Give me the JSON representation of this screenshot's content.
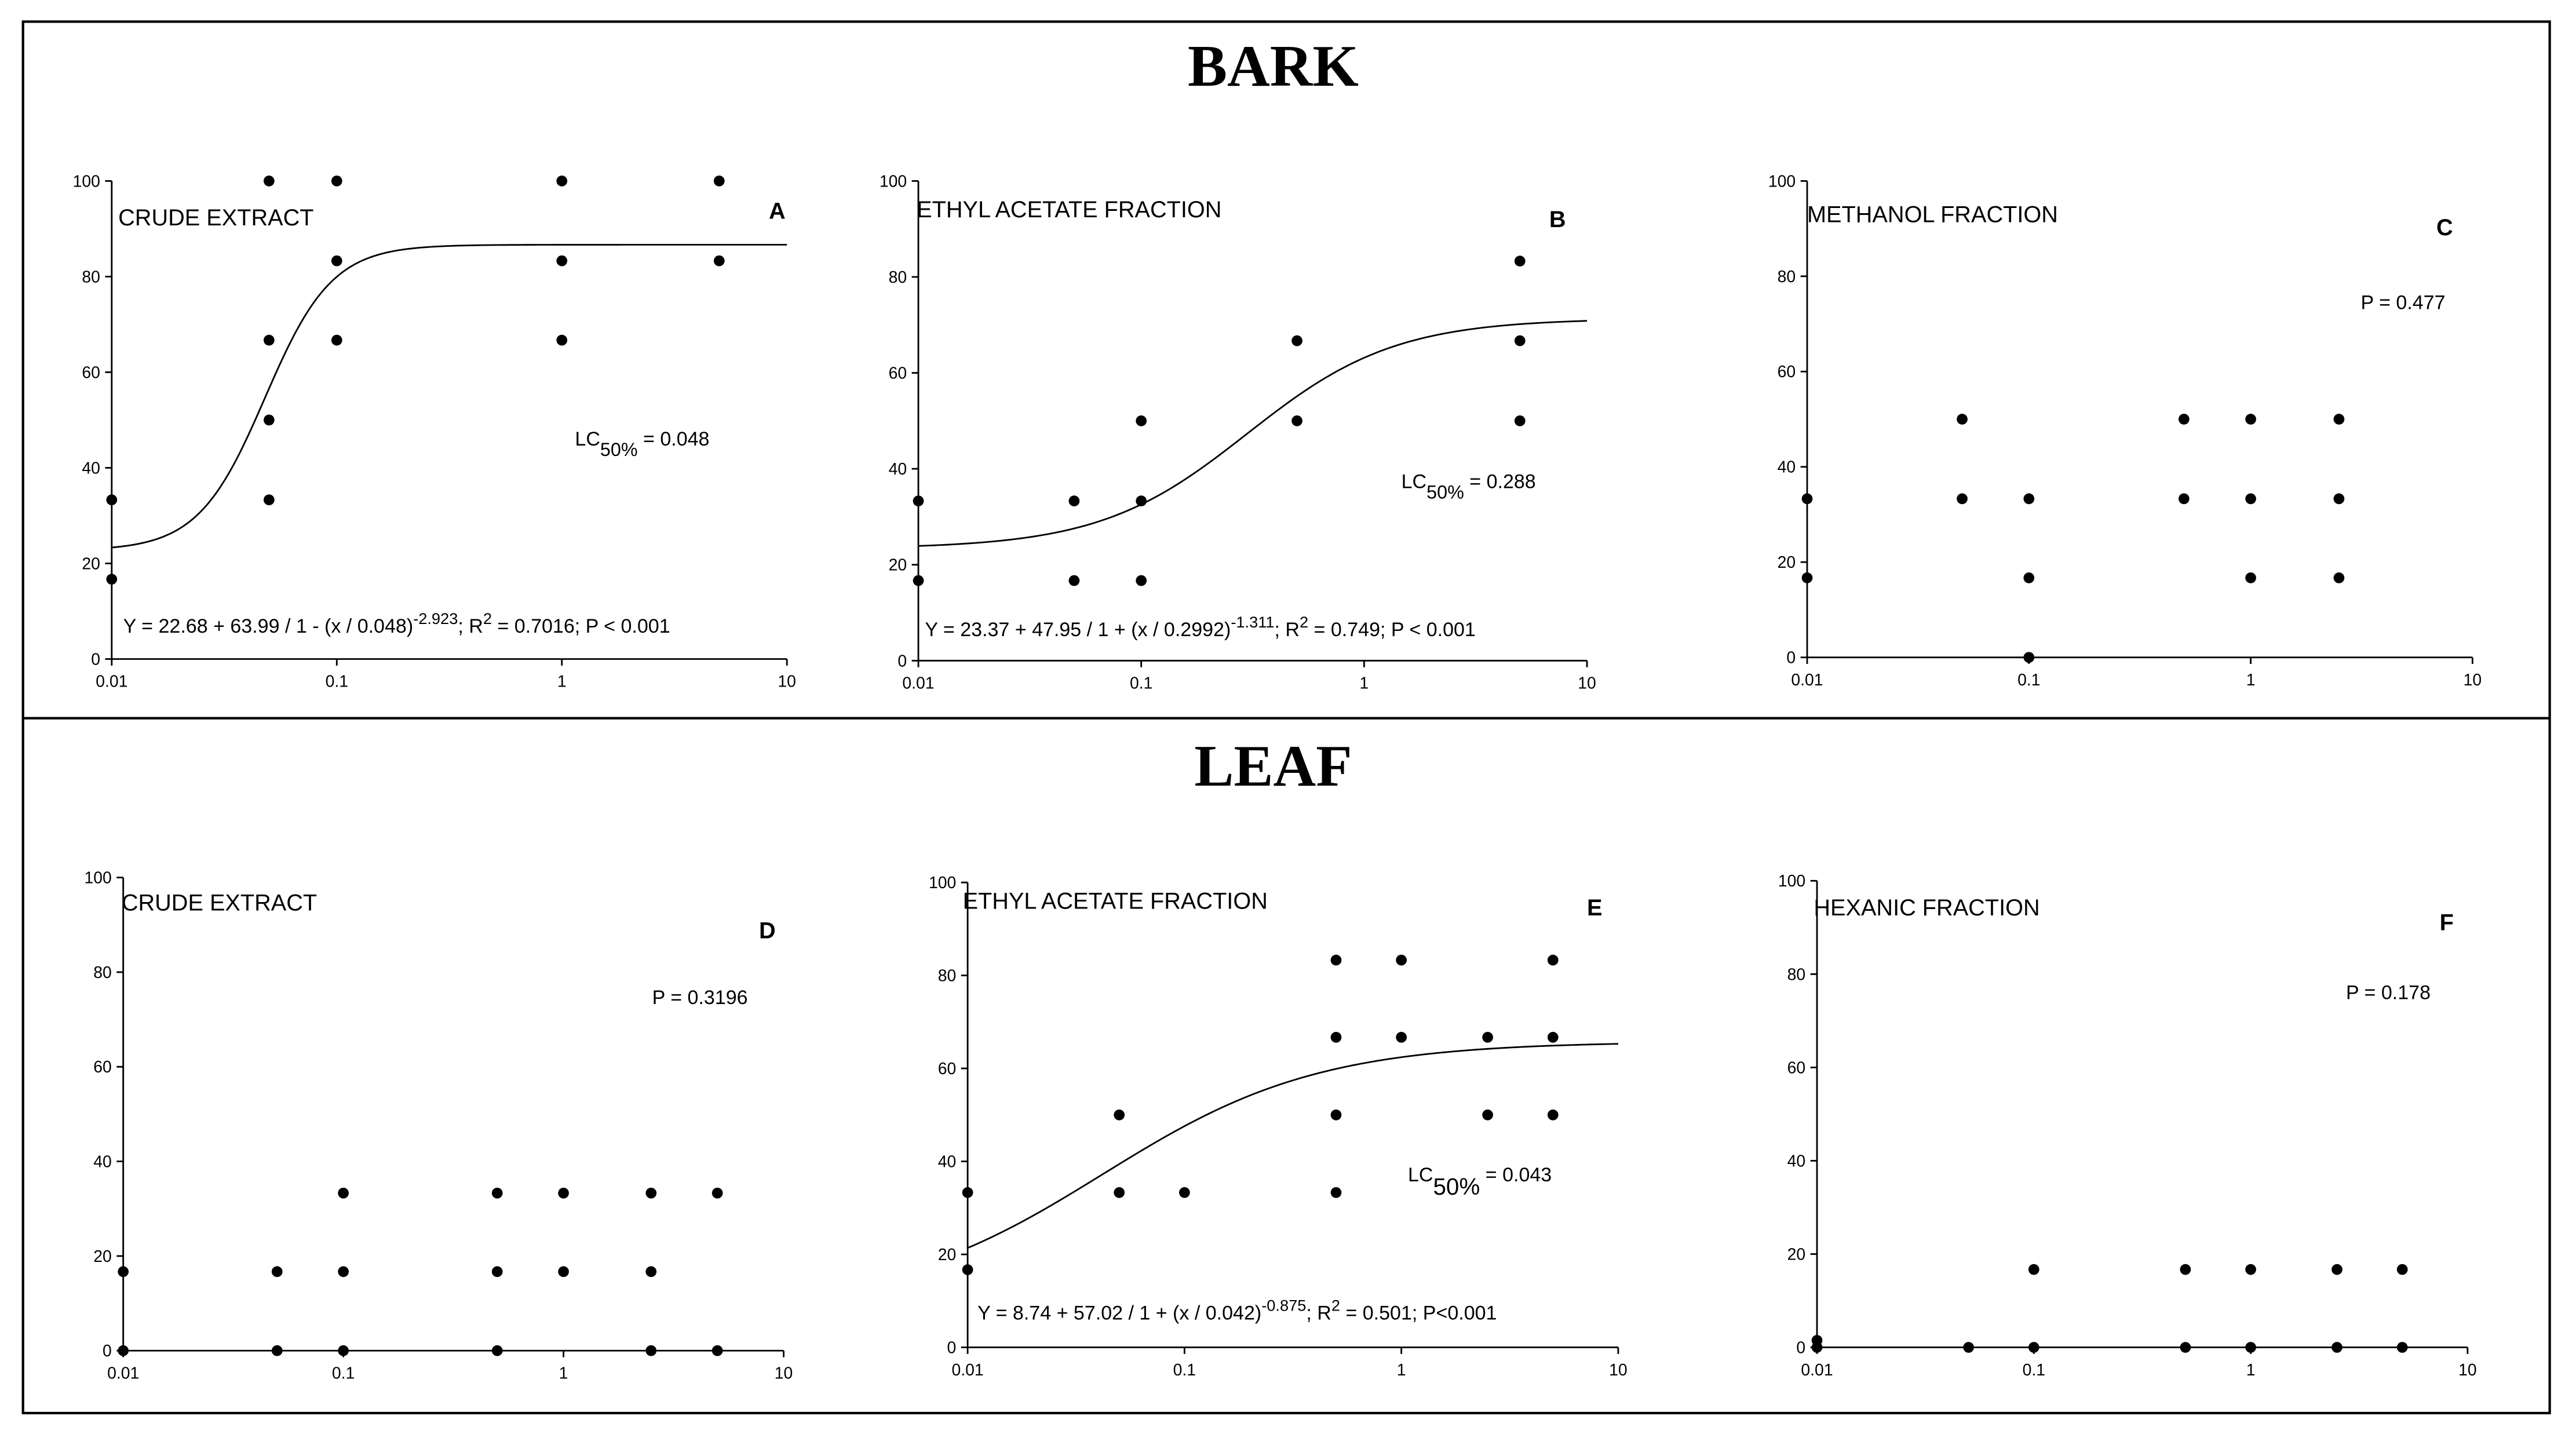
{
  "sections": [
    {
      "title": "BARK"
    },
    {
      "title": "LEAF"
    }
  ],
  "chart_data": [
    {
      "type": "scatter",
      "title": "CRUDE EXTRACT",
      "panel_label": "A",
      "xscale": "log",
      "color": "#000000",
      "xlim": [
        0.01,
        10
      ],
      "xticks": [
        0.01,
        0.1,
        1,
        10
      ],
      "ylim": [
        0,
        100
      ],
      "yticks": [
        0,
        20,
        40,
        60,
        80,
        100
      ],
      "x": [
        0.01,
        0.01,
        0.05,
        0.05,
        0.05,
        0.05,
        0.1,
        0.1,
        0.1,
        1,
        1,
        1,
        5,
        5
      ],
      "values": [
        33.3,
        16.7,
        100,
        66.7,
        50,
        33.3,
        100,
        83.3,
        66.7,
        100,
        83.3,
        66.7,
        100,
        83.3
      ],
      "fit": {
        "y0": 22.68,
        "a": 63.99,
        "x0": 0.048,
        "b": -2.923
      },
      "annotations": [
        {
          "segments": [
            {
              "text": "LC"
            },
            {
              "text": "50%",
              "script": "sub"
            },
            {
              "text": " = 0.048"
            }
          ]
        },
        {
          "segments": [
            {
              "text": "Y = 22.68 + 63.99 / 1 - (x / 0.048)"
            },
            {
              "text": "-2.923",
              "script": "super"
            },
            {
              "text": "; R"
            },
            {
              "text": "2",
              "script": "super"
            },
            {
              "text": " = 0.7016; P < 0.001"
            }
          ]
        }
      ]
    },
    {
      "type": "scatter",
      "title": "ETHYL ACETATE FRACTION",
      "panel_label": "B",
      "xscale": "log",
      "color": "#000000",
      "xlim": [
        0.01,
        10
      ],
      "xticks": [
        0.01,
        0.1,
        1,
        10
      ],
      "ylim": [
        0,
        100
      ],
      "yticks": [
        0,
        20,
        40,
        60,
        80,
        100
      ],
      "x": [
        0.01,
        0.01,
        0.05,
        0.05,
        0.1,
        0.1,
        0.1,
        0.5,
        0.5,
        5,
        5,
        5
      ],
      "values": [
        33.3,
        16.7,
        33.3,
        16.7,
        50,
        33.3,
        16.7,
        66.7,
        50,
        83.3,
        66.7,
        50
      ],
      "fit": {
        "y0": 23.37,
        "a": 47.95,
        "x0": 0.2992,
        "b": -1.311
      },
      "annotations": [
        {
          "segments": [
            {
              "text": "LC"
            },
            {
              "text": "50%",
              "script": "sub"
            },
            {
              "text": " = 0.288"
            }
          ]
        },
        {
          "segments": [
            {
              "text": "Y = 23.37 + 47.95 / 1 + (x / 0.2992)"
            },
            {
              "text": "-1.311",
              "script": "super"
            },
            {
              "text": "; R"
            },
            {
              "text": "2",
              "script": "super"
            },
            {
              "text": " = 0.749; P < 0.001"
            }
          ]
        }
      ]
    },
    {
      "type": "scatter",
      "title": "METHANOL FRACTION",
      "panel_label": "C",
      "xscale": "log",
      "color": "#000000",
      "xlim": [
        0.01,
        10
      ],
      "xticks": [
        0.01,
        0.1,
        1,
        10
      ],
      "ylim": [
        0,
        100
      ],
      "yticks": [
        0,
        20,
        40,
        60,
        80,
        100
      ],
      "x": [
        0.01,
        0.01,
        0.05,
        0.05,
        0.1,
        0.1,
        0.1,
        0.5,
        0.5,
        1,
        1,
        1,
        2.5,
        2.5,
        2.5
      ],
      "values": [
        33.3,
        16.7,
        50,
        33.3,
        33.3,
        16.7,
        0,
        50,
        33.3,
        50,
        33.3,
        16.7,
        50,
        33.3,
        16.7
      ],
      "annotations": [
        {
          "segments": [
            {
              "text": "P = 0.477"
            }
          ]
        }
      ]
    },
    {
      "type": "scatter",
      "title": "CRUDE EXTRACT",
      "panel_label": "D",
      "xscale": "log",
      "color": "#000000",
      "xlim": [
        0.01,
        10
      ],
      "xticks": [
        0.01,
        0.1,
        1,
        10
      ],
      "ylim": [
        0,
        100
      ],
      "yticks": [
        0,
        20,
        40,
        60,
        80,
        100
      ],
      "x": [
        0.01,
        0.01,
        0.05,
        0.05,
        0.1,
        0.1,
        0.1,
        0.5,
        0.5,
        0.5,
        1,
        1,
        2.5,
        2.5,
        2.5,
        5,
        5
      ],
      "values": [
        16.7,
        0,
        16.7,
        0,
        33.3,
        16.7,
        0,
        33.3,
        16.7,
        0,
        33.3,
        16.7,
        33.3,
        16.7,
        0,
        33.3,
        0
      ],
      "annotations": [
        {
          "segments": [
            {
              "text": "P = 0.3196"
            }
          ]
        }
      ]
    },
    {
      "type": "scatter",
      "title": "ETHYL ACETATE FRACTION",
      "panel_label": "E",
      "xscale": "log",
      "color": "#000000",
      "xlim": [
        0.01,
        10
      ],
      "xticks": [
        0.01,
        0.1,
        1,
        10
      ],
      "ylim": [
        0,
        100
      ],
      "yticks": [
        0,
        20,
        40,
        60,
        80,
        100
      ],
      "x": [
        0.01,
        0.01,
        0.05,
        0.05,
        0.1,
        0.5,
        0.5,
        0.5,
        0.5,
        1,
        1,
        2.5,
        2.5,
        5,
        5,
        5
      ],
      "values": [
        33.3,
        16.7,
        50,
        33.3,
        33.3,
        83.3,
        66.7,
        50,
        33.3,
        83.3,
        66.7,
        66.7,
        50,
        83.3,
        66.7,
        50
      ],
      "fit": {
        "y0": 8.74,
        "a": 57.02,
        "x0": 0.042,
        "b": -0.875
      },
      "annotations": [
        {
          "segments": [
            {
              "text": "LC"
            },
            {
              "text": "50%",
              "script": "sub"
            },
            {
              "text": " = 0.043"
            }
          ]
        },
        {
          "segments": [
            {
              "text": "Y = 8.74 + 57.02 / 1 + (x / 0.042)"
            },
            {
              "text": "-0.875",
              "script": "super"
            },
            {
              "text": "; R"
            },
            {
              "text": "2",
              "script": "super"
            },
            {
              "text": " = 0.501; P<0.001"
            }
          ]
        }
      ]
    },
    {
      "type": "scatter",
      "title": "HEXANIC FRACTION",
      "panel_label": "F",
      "xscale": "log",
      "color": "#000000",
      "xlim": [
        0.01,
        10
      ],
      "xticks": [
        0.01,
        0.1,
        1,
        10
      ],
      "ylim": [
        0,
        100
      ],
      "yticks": [
        0,
        20,
        40,
        60,
        80,
        100
      ],
      "x": [
        0.01,
        0.01,
        0.05,
        0.1,
        0.1,
        0.5,
        0.5,
        1,
        1,
        2.5,
        2.5,
        5,
        5
      ],
      "values": [
        1.5,
        0,
        0,
        16.7,
        0,
        16.7,
        0,
        16.7,
        0,
        16.7,
        0,
        16.7,
        0
      ],
      "annotations": [
        {
          "segments": [
            {
              "text": "P = 0.178"
            }
          ]
        }
      ]
    }
  ]
}
